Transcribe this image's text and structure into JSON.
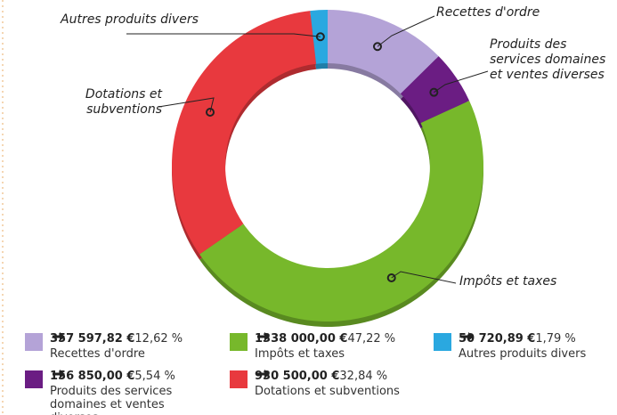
{
  "chart_data": {
    "type": "pie",
    "donut": true,
    "categories": [
      "Recettes d'ordre",
      "Produits des services domaines et ventes diverses",
      "Impôts et taxes",
      "Dotations et subventions",
      "Autres produits divers"
    ],
    "values": [
      12.62,
      5.54,
      47.22,
      32.84,
      1.79
    ],
    "value_labels": [
      "12,62 %",
      "5,54 %",
      "47,22 %",
      "32,84 %",
      "1,79 %"
    ],
    "amounts": [
      357597.82,
      156850.0,
      1338000.0,
      930500.0,
      50720.89
    ],
    "amount_labels": [
      "357 597,82 €",
      "156 850,00 €",
      "1338 000,00 €",
      "930 500,00 €",
      "50 720,89 €"
    ],
    "colors": [
      "#b4a3d7",
      "#6b1d83",
      "#77b82b",
      "#e8393e",
      "#2aa8e0"
    ]
  }
}
